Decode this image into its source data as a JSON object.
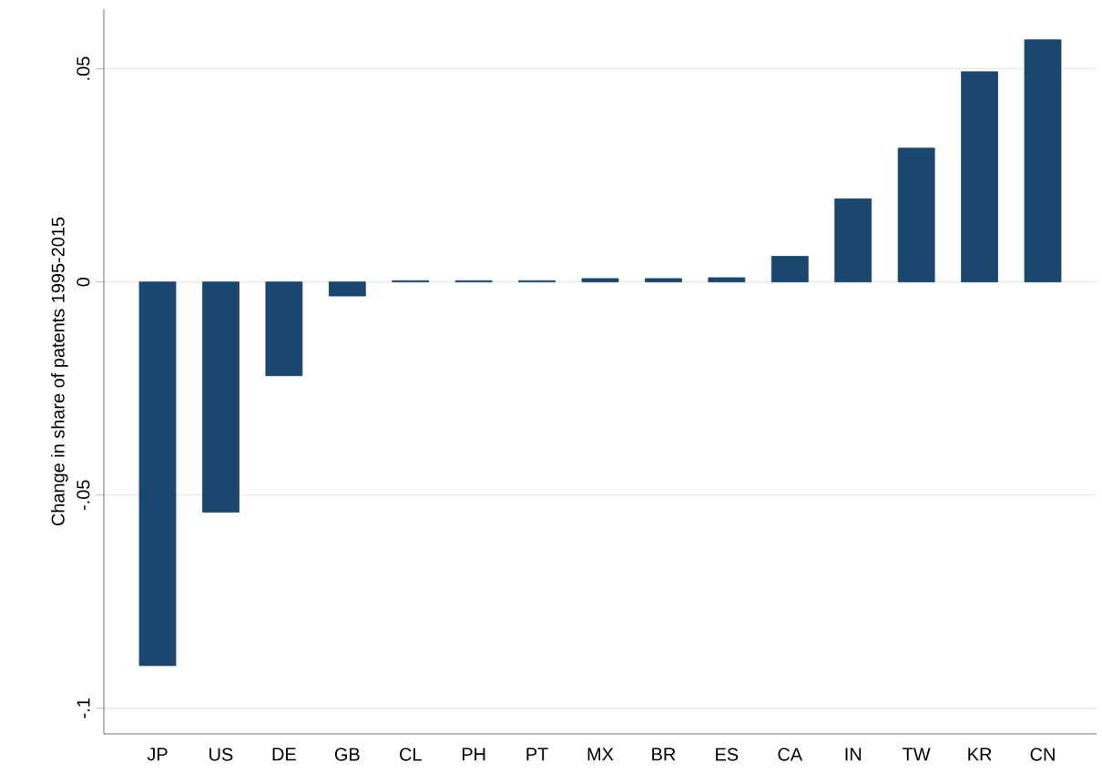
{
  "chart_data": {
    "type": "bar",
    "ylabel": "Change in share of patents 1995-2015",
    "categories": [
      "JP",
      "US",
      "DE",
      "GB",
      "CL",
      "PH",
      "PT",
      "MX",
      "BR",
      "ES",
      "CA",
      "IN",
      "TW",
      "KR",
      "CN"
    ],
    "values": [
      -0.09,
      -0.054,
      -0.022,
      -0.0033,
      0.0003,
      0.0003,
      0.0003,
      0.0008,
      0.0008,
      0.001,
      0.006,
      0.0195,
      0.0314,
      0.0493,
      0.0568
    ],
    "color": "#1a476f",
    "ylim": [
      -0.106,
      0.064
    ],
    "yticks": [
      {
        "value": -0.1,
        "label": "-.1"
      },
      {
        "value": -0.05,
        "label": "-.05"
      },
      {
        "value": 0,
        "label": "0"
      },
      {
        "value": 0.05,
        "label": ".05"
      }
    ],
    "grid": "y"
  }
}
